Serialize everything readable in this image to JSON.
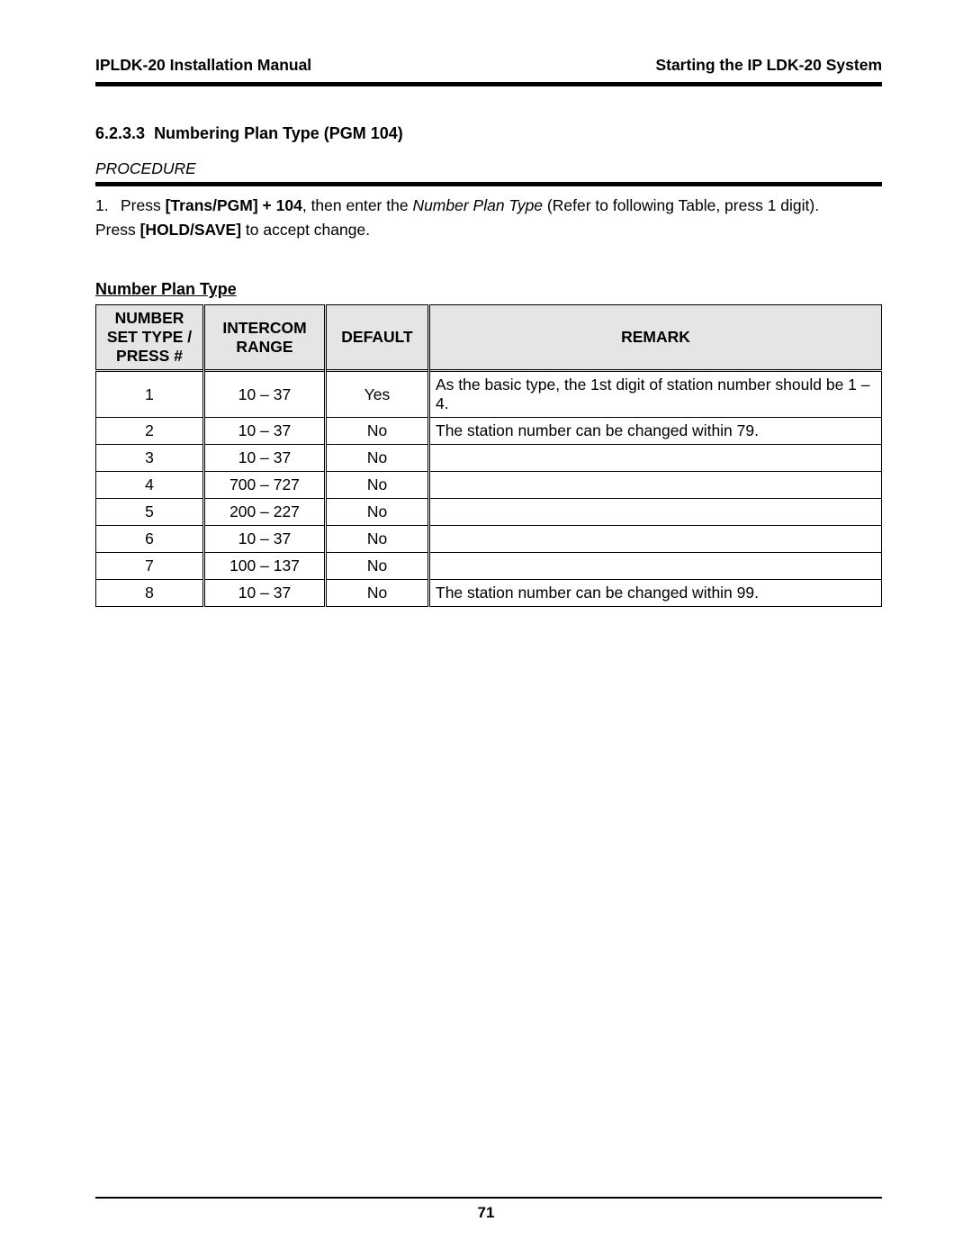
{
  "header": {
    "left": "IPLDK-20 Installation Manual",
    "right": "Starting the IP LDK-20 System"
  },
  "section": {
    "number": "6.2.3.3",
    "title": "Numbering Plan Type (PGM 104)"
  },
  "procedure": {
    "label": "PROCEDURE",
    "step_num": "1.",
    "press_word": "Press ",
    "trans_pgm": "[Trans/PGM]",
    "plus104": " + 104",
    "then_enter": ", then enter the ",
    "nptype": "Number Plan Type",
    "refer": " (Refer to following Table, press 1 digit).",
    "press2": "Press ",
    "holdsave": "[HOLD/SAVE]",
    "accept": " to accept change."
  },
  "table": {
    "title": "Number Plan Type",
    "headers": {
      "c1a": "NUMBER SET TYPE /",
      "c1b": "PRESS #",
      "c2a": "INTERCOM",
      "c2b": "RANGE",
      "c3": "DEFAULT",
      "c4": "REMARK"
    },
    "rows": [
      {
        "press": "1",
        "range": "10 – 37",
        "def": "Yes",
        "remark": "As the basic type, the 1st digit of station number should be 1 – 4."
      },
      {
        "press": "2",
        "range": "10 – 37",
        "def": "No",
        "remark": "The station number can be changed within 79."
      },
      {
        "press": "3",
        "range": "10 – 37",
        "def": "No",
        "remark": ""
      },
      {
        "press": "4",
        "range": "700 – 727",
        "def": "No",
        "remark": ""
      },
      {
        "press": "5",
        "range": "200 – 227",
        "def": "No",
        "remark": ""
      },
      {
        "press": "6",
        "range": "10 – 37",
        "def": "No",
        "remark": ""
      },
      {
        "press": "7",
        "range": "100 – 137",
        "def": "No",
        "remark": ""
      },
      {
        "press": "8",
        "range": "10 – 37",
        "def": "No",
        "remark": "The station number can be changed within 99."
      }
    ]
  },
  "footer": {
    "page": "71"
  },
  "style": {
    "header_bg": "#e5e5e5",
    "divider_thick": 5,
    "border_color": "#000000",
    "font_size_body": 17.5,
    "font_size_title": 18
  }
}
